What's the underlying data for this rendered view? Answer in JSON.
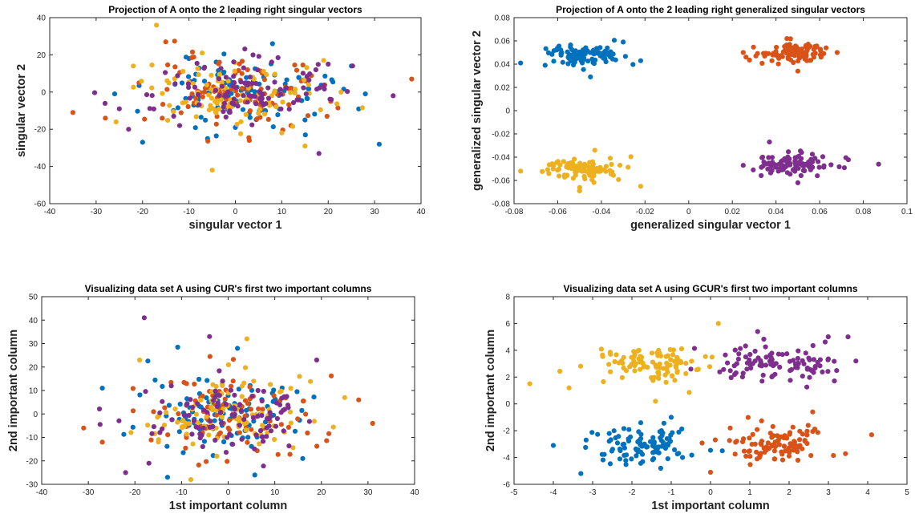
{
  "colors": {
    "blue": "#0072BD",
    "orange": "#D95319",
    "yellow": "#EDB120",
    "purple": "#7E2F8E"
  },
  "chart_data": [
    {
      "type": "scatter",
      "title": "Projection of A onto the 2 leading right singular vectors",
      "xlabel": "singular vector 1",
      "ylabel": "singular vector 2",
      "xlim": [
        -40,
        40
      ],
      "ylim": [
        -60,
        40
      ],
      "xticks": [
        -40,
        -30,
        -20,
        -10,
        0,
        10,
        20,
        30,
        40
      ],
      "yticks": [
        -60,
        -40,
        -20,
        0,
        20,
        40
      ],
      "xtick_labels": [
        "-40",
        "-30",
        "-20",
        "-10",
        "0",
        "10",
        "20",
        "30",
        "40"
      ],
      "ytick_labels": [
        "-60",
        "-40",
        "-20",
        "0",
        "20",
        "40"
      ],
      "grid": false,
      "series": [
        {
          "color": "blue",
          "cx": 0,
          "cy": 0,
          "sx": 11,
          "sy": 10,
          "n": 100,
          "points": [
            [
              -26,
              -1
            ],
            [
              -20,
              -27
            ],
            [
              8,
              26
            ],
            [
              31,
              -28
            ],
            [
              -6,
              -25
            ],
            [
              28,
              -1
            ],
            [
              25,
              14
            ],
            [
              -10,
              18
            ],
            [
              15,
              -15
            ],
            [
              0,
              -19
            ]
          ]
        },
        {
          "color": "orange",
          "cx": 0,
          "cy": 0,
          "sx": 11,
          "sy": 10,
          "n": 100,
          "points": [
            [
              -35,
              -11
            ],
            [
              38,
              7
            ],
            [
              -28,
              -14
            ],
            [
              -15,
              27
            ],
            [
              3,
              -26
            ],
            [
              12,
              -18
            ]
          ]
        },
        {
          "color": "yellow",
          "cx": 0,
          "cy": 0,
          "sx": 11,
          "sy": 10,
          "n": 100,
          "points": [
            [
              -17,
              36
            ],
            [
              -5,
              -42
            ],
            [
              15,
              -29
            ],
            [
              -22,
              14
            ],
            [
              10,
              -22
            ]
          ]
        },
        {
          "color": "purple",
          "cx": 0,
          "cy": 0,
          "sx": 11,
          "sy": 10,
          "n": 100,
          "points": [
            [
              34,
              -2
            ],
            [
              -23,
              -20
            ],
            [
              18,
              -33
            ],
            [
              -25,
              -9
            ],
            [
              20,
              15
            ],
            [
              -12,
              -18
            ]
          ]
        }
      ]
    },
    {
      "type": "scatter",
      "title": "Projection of A onto the 2 leading right generalized singular vectors",
      "xlabel": "generalized singular vector 1",
      "ylabel": "generalized singular vector 2",
      "xlim": [
        -0.08,
        0.1
      ],
      "ylim": [
        -0.08,
        0.08
      ],
      "xticks": [
        -0.08,
        -0.06,
        -0.04,
        -0.02,
        0,
        0.02,
        0.04,
        0.06,
        0.08,
        0.1
      ],
      "yticks": [
        -0.08,
        -0.06,
        -0.04,
        -0.02,
        0,
        0.02,
        0.04,
        0.06,
        0.08
      ],
      "xtick_labels": [
        "-0.08",
        "-0.06",
        "-0.04",
        "-0.02",
        "0",
        "0.02",
        "0.04",
        "0.06",
        "0.08",
        "0.1"
      ],
      "ytick_labels": [
        "-0.08",
        "-0.06",
        "-0.04",
        "-0.02",
        "0",
        "0.02",
        "0.04",
        "0.06",
        "0.08"
      ],
      "grid": false,
      "series": [
        {
          "color": "blue",
          "cx": -0.049,
          "cy": 0.047,
          "sx": 0.0095,
          "sy": 0.0052,
          "n": 100,
          "points": [
            [
              -0.077,
              0.041
            ],
            [
              -0.022,
              0.043
            ],
            [
              -0.03,
              0.059
            ],
            [
              -0.045,
              0.029
            ]
          ]
        },
        {
          "color": "orange",
          "cx": 0.048,
          "cy": 0.05,
          "sx": 0.0085,
          "sy": 0.0045,
          "n": 100,
          "points": [
            [
              0.025,
              0.05
            ],
            [
              0.068,
              0.05
            ],
            [
              0.05,
              0.034
            ],
            [
              0.045,
              0.062
            ]
          ]
        },
        {
          "color": "yellow",
          "cx": -0.05,
          "cy": -0.05,
          "sx": 0.0095,
          "sy": 0.0055,
          "n": 100,
          "points": [
            [
              -0.077,
              -0.052
            ],
            [
              -0.022,
              -0.065
            ],
            [
              -0.05,
              -0.069
            ],
            [
              -0.043,
              -0.034
            ]
          ]
        },
        {
          "color": "purple",
          "cx": 0.048,
          "cy": -0.046,
          "sx": 0.0095,
          "sy": 0.0052,
          "n": 100,
          "points": [
            [
              0.087,
              -0.046
            ],
            [
              0.025,
              -0.047
            ],
            [
              0.037,
              -0.027
            ],
            [
              0.05,
              -0.062
            ]
          ]
        }
      ]
    },
    {
      "type": "scatter",
      "title": "Visualizing data set A using CUR's first two important columns",
      "xlabel": "1st important column",
      "ylabel": "2nd important column",
      "xlim": [
        -40,
        40
      ],
      "ylim": [
        -30,
        50
      ],
      "xticks": [
        -40,
        -30,
        -20,
        -10,
        0,
        10,
        20,
        30,
        40
      ],
      "yticks": [
        -30,
        -20,
        -10,
        0,
        10,
        20,
        30,
        40,
        50
      ],
      "xtick_labels": [
        "-40",
        "-30",
        "-20",
        "-10",
        "0",
        "10",
        "20",
        "30",
        "40"
      ],
      "ytick_labels": [
        "-30",
        "-20",
        "-10",
        "0",
        "10",
        "20",
        "30",
        "40",
        "50"
      ],
      "grid": false,
      "series": [
        {
          "color": "blue",
          "cx": 0,
          "cy": 0,
          "sx": 10,
          "sy": 9,
          "n": 100,
          "points": [
            [
              -27,
              11
            ],
            [
              2,
              28
            ],
            [
              -13,
              -27
            ],
            [
              16,
              -19
            ]
          ]
        },
        {
          "color": "orange",
          "cx": 0,
          "cy": 0,
          "sx": 10,
          "sy": 9,
          "n": 100,
          "points": [
            [
              -31,
              -6
            ],
            [
              31,
              -4
            ],
            [
              -27,
              -12
            ],
            [
              28,
              6
            ]
          ]
        },
        {
          "color": "yellow",
          "cx": 0,
          "cy": 0,
          "sx": 10,
          "sy": 9,
          "n": 100,
          "points": [
            [
              -19,
              23
            ],
            [
              4,
              32
            ],
            [
              -8,
              -28
            ],
            [
              25,
              7
            ]
          ]
        },
        {
          "color": "purple",
          "cx": 0,
          "cy": 0,
          "sx": 10,
          "sy": 9,
          "n": 100,
          "points": [
            [
              -18,
              41
            ],
            [
              -4,
              33
            ],
            [
              -22,
              -25
            ],
            [
              19,
              23
            ],
            [
              -17,
              -21
            ]
          ]
        }
      ]
    },
    {
      "type": "scatter",
      "title": "Visualizing data set A using GCUR's first two important columns",
      "xlabel": "1st important column",
      "ylabel": "2nd important column",
      "xlim": [
        -5,
        5
      ],
      "ylim": [
        -6,
        8
      ],
      "xticks": [
        -5,
        -4,
        -3,
        -2,
        -1,
        0,
        1,
        2,
        3,
        4,
        5
      ],
      "yticks": [
        -6,
        -4,
        -2,
        0,
        2,
        4,
        6,
        8
      ],
      "xtick_labels": [
        "-5",
        "-4",
        "-3",
        "-2",
        "-1",
        "0",
        "1",
        "2",
        "3",
        "4",
        "5"
      ],
      "ytick_labels": [
        "-6",
        "-4",
        "-2",
        "0",
        "2",
        "4",
        "6",
        "8"
      ],
      "grid": false,
      "series": [
        {
          "color": "blue",
          "cx": -1.7,
          "cy": -3.0,
          "sx": 0.75,
          "sy": 0.8,
          "n": 100,
          "points": [
            [
              -4.0,
              -3.1
            ],
            [
              0.3,
              -3.5
            ],
            [
              -3.3,
              -5.2
            ],
            [
              -1.0,
              -1.0
            ]
          ]
        },
        {
          "color": "orange",
          "cx": 1.7,
          "cy": -3.0,
          "sx": 0.75,
          "sy": 0.8,
          "n": 100,
          "points": [
            [
              4.1,
              -2.3
            ],
            [
              0.0,
              -5.1
            ],
            [
              0.5,
              -1.8
            ],
            [
              2.6,
              -0.6
            ]
          ]
        },
        {
          "color": "yellow",
          "cx": -1.5,
          "cy": 3.0,
          "sx": 0.8,
          "sy": 0.8,
          "n": 100,
          "points": [
            [
              -4.6,
              1.5
            ],
            [
              0.2,
              6.0
            ],
            [
              -3.6,
              1.2
            ],
            [
              -1.4,
              0.2
            ]
          ]
        },
        {
          "color": "purple",
          "cx": 1.6,
          "cy": 3.0,
          "sx": 0.8,
          "sy": 0.8,
          "n": 100,
          "points": [
            [
              3.7,
              3.2
            ],
            [
              3.5,
              5.0
            ],
            [
              -0.5,
              2.6
            ],
            [
              1.2,
              5.4
            ]
          ]
        }
      ]
    }
  ]
}
